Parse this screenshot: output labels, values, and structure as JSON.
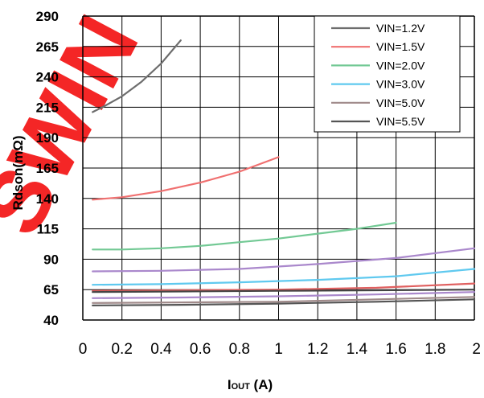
{
  "chart_data": {
    "type": "line",
    "xlabel": "IOUT (A)",
    "xlabel_main": "I",
    "xlabel_sub": "OUT",
    "xlabel_unit": " (A)",
    "ylabel": "Rdson(mΩ)",
    "xlim": [
      0,
      2
    ],
    "ylim": [
      40,
      290
    ],
    "xticks": [
      0,
      0.2,
      0.4,
      0.6,
      0.8,
      1,
      1.2,
      1.4,
      1.6,
      1.8,
      2
    ],
    "xtick_labels": [
      "0",
      "0.2",
      "0.4",
      "0.6",
      "0.8",
      "1",
      "1.2",
      "1.4",
      "1.6",
      "1.8",
      "2"
    ],
    "yticks": [
      40,
      65,
      90,
      115,
      140,
      165,
      190,
      215,
      240,
      265,
      290
    ],
    "ytick_labels": [
      "40",
      "65",
      "90",
      "115",
      "140",
      "165",
      "190",
      "215",
      "240",
      "265",
      "290"
    ],
    "grid": true,
    "legend_position": "top-right",
    "series": [
      {
        "name": "VIN=1.2V",
        "color": "#6d6d6d",
        "x": [
          0.05,
          0.1,
          0.2,
          0.3,
          0.4,
          0.5
        ],
        "y": [
          211,
          215,
          224,
          236,
          251,
          270
        ]
      },
      {
        "name": "VIN=1.5V",
        "color": "#f07070",
        "x": [
          0.05,
          0.2,
          0.4,
          0.6,
          0.8,
          1.0
        ],
        "y": [
          139,
          141,
          146,
          153,
          162,
          174
        ]
      },
      {
        "name": "VIN=2.0V",
        "color": "#72c994",
        "x": [
          0.05,
          0.2,
          0.4,
          0.6,
          0.8,
          1.0,
          1.2,
          1.4,
          1.6
        ],
        "y": [
          98,
          98,
          99,
          101,
          104,
          107,
          111,
          115,
          120
        ]
      },
      {
        "name": "VIN=3.0V",
        "color": "#5fc9ef",
        "x": [
          0.05,
          0.4,
          0.8,
          1.2,
          1.6,
          2.0
        ],
        "y": [
          69,
          69.5,
          71,
          73,
          76,
          82
        ]
      },
      {
        "name": "VIN=5.0V",
        "color": "#a08a8a",
        "x": [
          0.05,
          0.5,
          1.0,
          1.5,
          2.0
        ],
        "y": [
          54,
          54.5,
          55,
          57,
          59
        ]
      },
      {
        "name": "VIN=5.5V",
        "color": "#555555",
        "x": [
          0.05,
          0.5,
          1.0,
          1.5,
          2.0
        ],
        "y": [
          52,
          52.5,
          53.5,
          55,
          57
        ]
      },
      {
        "color": "#aa88cc",
        "x": [
          0.05,
          0.4,
          0.8,
          1.2,
          1.6,
          2.0
        ],
        "y": [
          80,
          80.5,
          82,
          86,
          91,
          99
        ]
      },
      {
        "color": "#e06060",
        "x": [
          0.05,
          0.5,
          1.0,
          1.5,
          2.0
        ],
        "y": [
          64,
          64.5,
          65,
          66.5,
          70
        ]
      },
      {
        "color": "#aa88cc",
        "x": [
          0.05,
          0.5,
          1.0,
          1.5,
          2.0
        ],
        "y": [
          58,
          58.5,
          59.5,
          61,
          63
        ]
      },
      {
        "color": "#444444",
        "x": [
          0.05,
          0.5,
          1.0,
          1.5,
          2.0
        ],
        "y": [
          63,
          63.5,
          64,
          64.5,
          65
        ]
      }
    ]
  },
  "watermark": "SWIN"
}
